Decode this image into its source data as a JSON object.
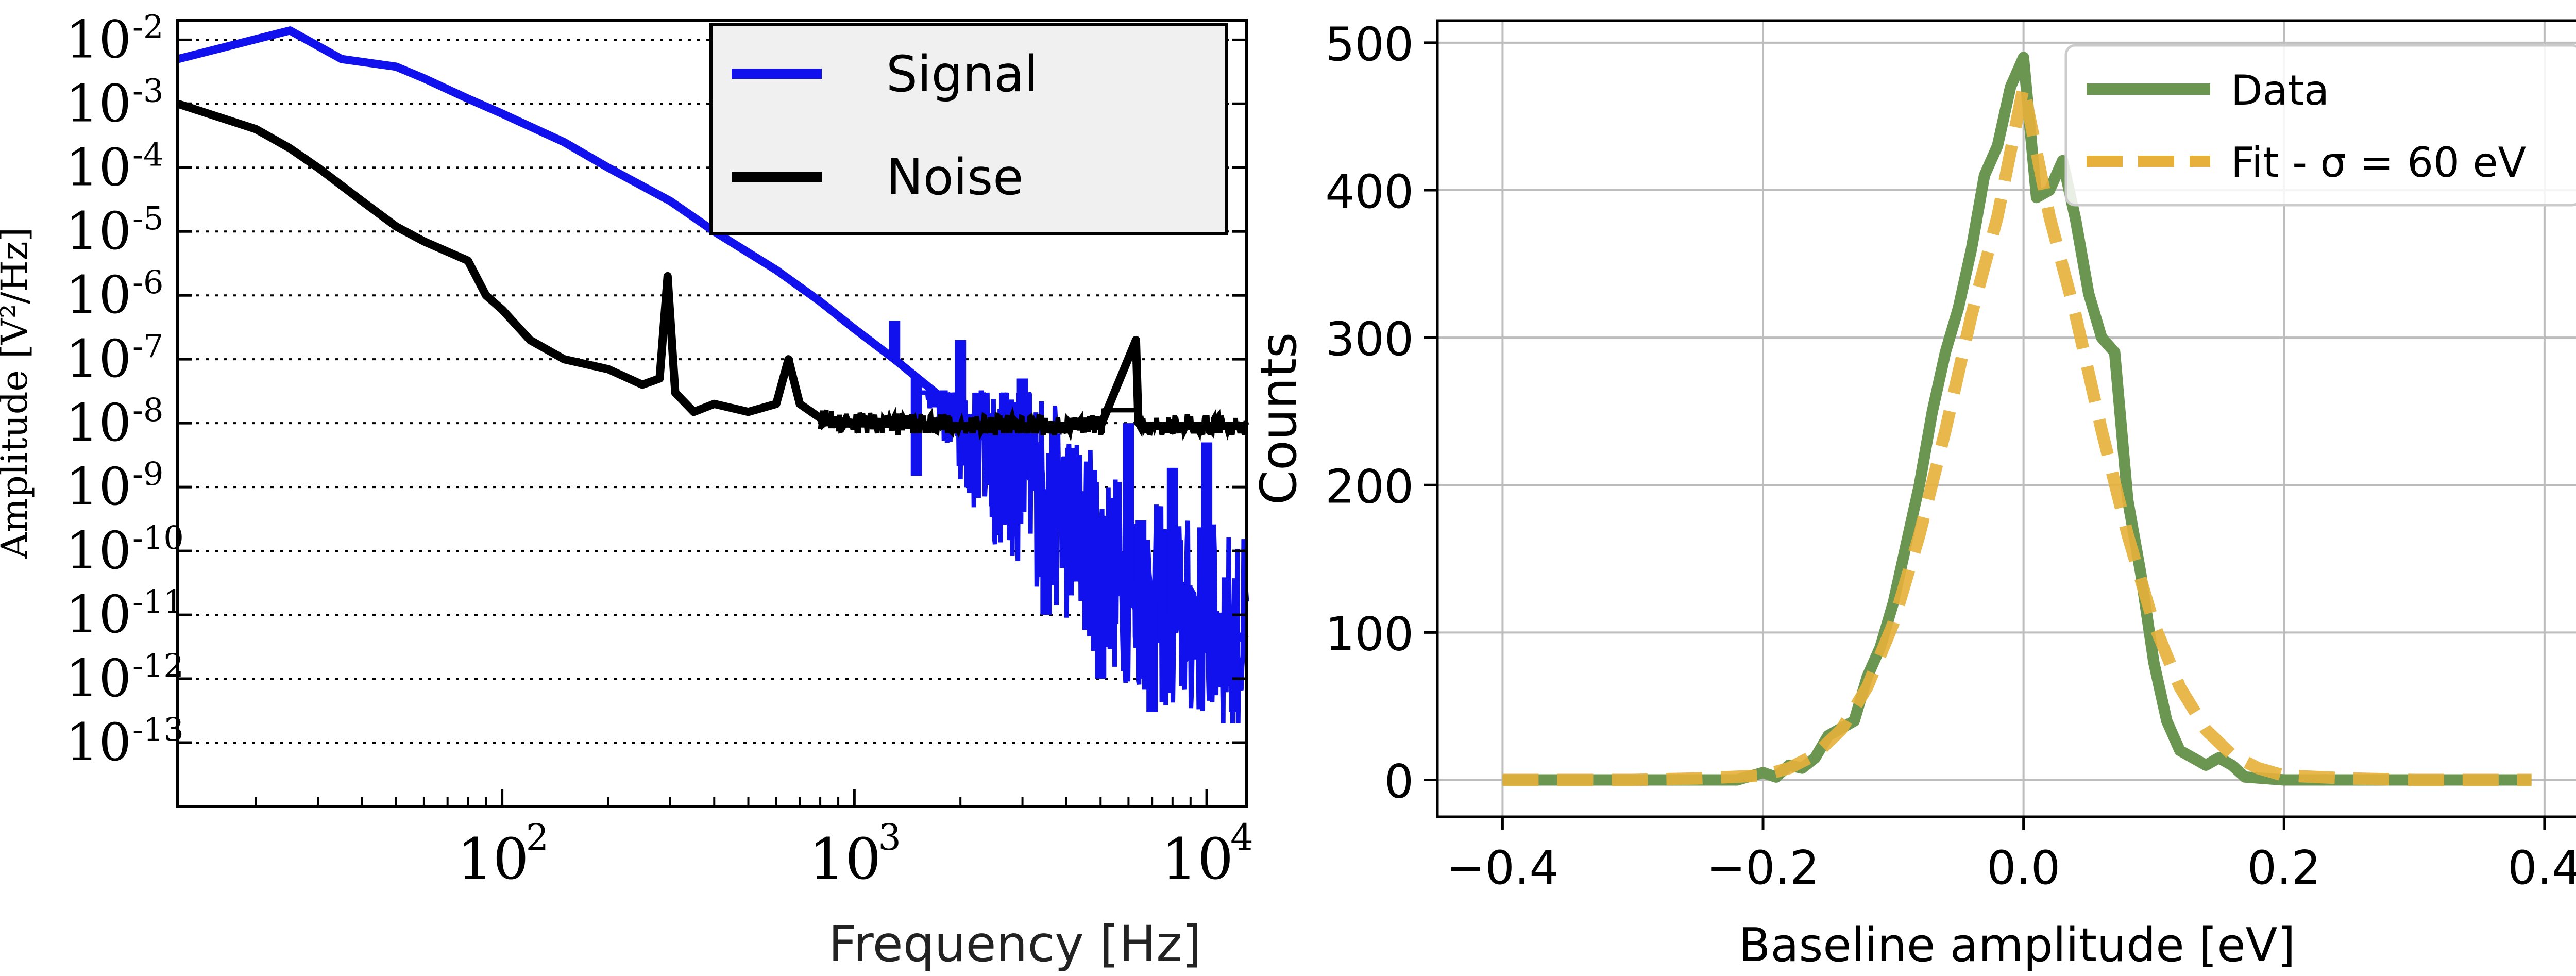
{
  "chart_data": [
    {
      "type": "line",
      "xlabel": "Frequency [Hz]",
      "ylabel": "Amplitude [V²/Hz]",
      "x_scale": "log",
      "y_scale": "log",
      "xlim": [
        12,
        13000
      ],
      "ylim": [
        1e-14,
        0.02
      ],
      "x_ticks": [
        {
          "value": 100,
          "label": "10",
          "exp": "2"
        },
        {
          "value": 1000,
          "label": "10",
          "exp": "3"
        },
        {
          "value": 10000,
          "label": "10",
          "exp": "4"
        }
      ],
      "y_ticks": [
        {
          "value": 0.01,
          "label": "10",
          "exp": "-2"
        },
        {
          "value": 0.001,
          "label": "10",
          "exp": "-3"
        },
        {
          "value": 0.0001,
          "label": "10",
          "exp": "-4"
        },
        {
          "value": 1e-05,
          "label": "10",
          "exp": "-5"
        },
        {
          "value": 1e-06,
          "label": "10",
          "exp": "-6"
        },
        {
          "value": 1e-07,
          "label": "10",
          "exp": "-7"
        },
        {
          "value": 1e-08,
          "label": "10",
          "exp": "-8"
        },
        {
          "value": 1e-09,
          "label": "10",
          "exp": "-9"
        },
        {
          "value": 1e-10,
          "label": "10",
          "exp": "-10"
        },
        {
          "value": 1e-11,
          "label": "10",
          "exp": "-11"
        },
        {
          "value": 1e-12,
          "label": "10",
          "exp": "-12"
        },
        {
          "value": 1e-13,
          "label": "10",
          "exp": "-13"
        }
      ],
      "grid": "horizontal dotted",
      "legend_position": "top-right",
      "series": [
        {
          "name": "Signal",
          "color": "#1111ee",
          "x": [
            12,
            25,
            35,
            50,
            60,
            80,
            100,
            150,
            200,
            300,
            400,
            600,
            800,
            1000,
            1300,
            1700,
            2200,
            3000,
            4000,
            5000,
            6000,
            8000,
            10000,
            13000
          ],
          "y": [
            0.005,
            0.014,
            0.005,
            0.0038,
            0.0025,
            0.0012,
            0.0007,
            0.00025,
            0.0001,
            3e-05,
            1e-05,
            2.5e-06,
            8e-07,
            3e-07,
            1e-07,
            3e-08,
            8e-09,
            2e-09,
            3e-10,
            8e-11,
            3e-11,
            1e-11,
            8e-12,
            4e-12
          ],
          "noise_band": {
            "x_start": 1500,
            "x_end": 13000,
            "low_floor": 2e-13,
            "high_ceiling": 3e-08
          },
          "noise_points": [
            [
              1300,
              4e-07
            ],
            [
              1500,
              1.5e-09
            ],
            [
              2000,
              2e-07
            ],
            [
              2500,
              5e-10
            ],
            [
              3000,
              5e-08
            ],
            [
              3500,
              1e-11
            ],
            [
              4000,
              3e-09
            ],
            [
              5000,
              1e-12
            ],
            [
              6000,
              1e-08
            ],
            [
              6500,
              3e-10
            ],
            [
              7000,
              3e-13
            ],
            [
              8000,
              2e-09
            ],
            [
              9000,
              2e-12
            ],
            [
              10000,
              5e-09
            ],
            [
              12000,
              3e-13
            ]
          ]
        },
        {
          "name": "Noise",
          "color": "#000000",
          "x": [
            12,
            20,
            25,
            30,
            40,
            50,
            60,
            80,
            90,
            100,
            120,
            150,
            200,
            250,
            280,
            295,
            310,
            350,
            400,
            500,
            600,
            650,
            700,
            800,
            1000,
            2000,
            5000,
            6300,
            6400,
            6600,
            8000,
            13000
          ],
          "y": [
            0.001,
            0.0004,
            0.0002,
            0.0001,
            3e-05,
            1.2e-05,
            7e-06,
            3.5e-06,
            1e-06,
            6e-07,
            2e-07,
            1e-07,
            7e-08,
            4e-08,
            5e-08,
            2e-06,
            3e-08,
            1.5e-08,
            2e-08,
            1.5e-08,
            2e-08,
            1e-07,
            2e-08,
            1.2e-08,
            1e-08,
            9e-09,
            9e-09,
            2e-07,
            1e-08,
            9e-09,
            9e-09,
            9e-09
          ],
          "noise_band": {
            "x_start": 800,
            "x_end": 13000,
            "low_floor": 7e-09,
            "high_ceiling": 1.6e-08
          }
        }
      ]
    },
    {
      "type": "line",
      "xlabel": "Baseline amplitude [eV]",
      "ylabel": "Counts",
      "xlim": [
        -0.45,
        0.44
      ],
      "ylim": [
        -25,
        515
      ],
      "x_ticks": [
        {
          "value": -0.4,
          "label": "−0.4"
        },
        {
          "value": -0.2,
          "label": "−0.2"
        },
        {
          "value": 0.0,
          "label": "0.0"
        },
        {
          "value": 0.2,
          "label": "0.2"
        },
        {
          "value": 0.4,
          "label": "0.4"
        }
      ],
      "y_ticks": [
        {
          "value": 0,
          "label": "0"
        },
        {
          "value": 100,
          "label": "100"
        },
        {
          "value": 200,
          "label": "200"
        },
        {
          "value": 300,
          "label": "300"
        },
        {
          "value": 400,
          "label": "400"
        },
        {
          "value": 500,
          "label": "500"
        }
      ],
      "grid": "both",
      "legend_position": "top-right",
      "series": [
        {
          "name": "Data",
          "color": "#6b9651",
          "style": "solid",
          "x": [
            -0.4,
            -0.22,
            -0.2,
            -0.19,
            -0.18,
            -0.17,
            -0.16,
            -0.15,
            -0.14,
            -0.13,
            -0.12,
            -0.11,
            -0.1,
            -0.09,
            -0.08,
            -0.07,
            -0.06,
            -0.05,
            -0.04,
            -0.03,
            -0.02,
            -0.01,
            0.0,
            0.01,
            0.02,
            0.03,
            0.04,
            0.05,
            0.06,
            0.07,
            0.08,
            0.09,
            0.1,
            0.11,
            0.12,
            0.13,
            0.14,
            0.15,
            0.16,
            0.17,
            0.2,
            0.39
          ],
          "y": [
            0,
            0,
            5,
            2,
            10,
            8,
            15,
            30,
            35,
            40,
            70,
            90,
            120,
            160,
            200,
            250,
            290,
            320,
            360,
            410,
            430,
            470,
            490,
            395,
            400,
            420,
            380,
            330,
            300,
            290,
            190,
            140,
            80,
            40,
            20,
            15,
            10,
            15,
            10,
            2,
            0,
            0
          ]
        },
        {
          "name": "Fit - σ = 60 eV",
          "color": "#e6b03a",
          "style": "dashed",
          "x": [
            -0.4,
            -0.3,
            -0.25,
            -0.2,
            -0.18,
            -0.16,
            -0.14,
            -0.12,
            -0.1,
            -0.08,
            -0.06,
            -0.04,
            -0.02,
            0.0,
            0.02,
            0.04,
            0.06,
            0.08,
            0.1,
            0.12,
            0.14,
            0.16,
            0.18,
            0.2,
            0.25,
            0.3,
            0.39
          ],
          "y": [
            0,
            0,
            1,
            3,
            8,
            17,
            34,
            63,
            106,
            166,
            237,
            315,
            382,
            470,
            382,
            315,
            237,
            166,
            106,
            63,
            34,
            17,
            8,
            3,
            1,
            0,
            0
          ]
        }
      ]
    }
  ]
}
